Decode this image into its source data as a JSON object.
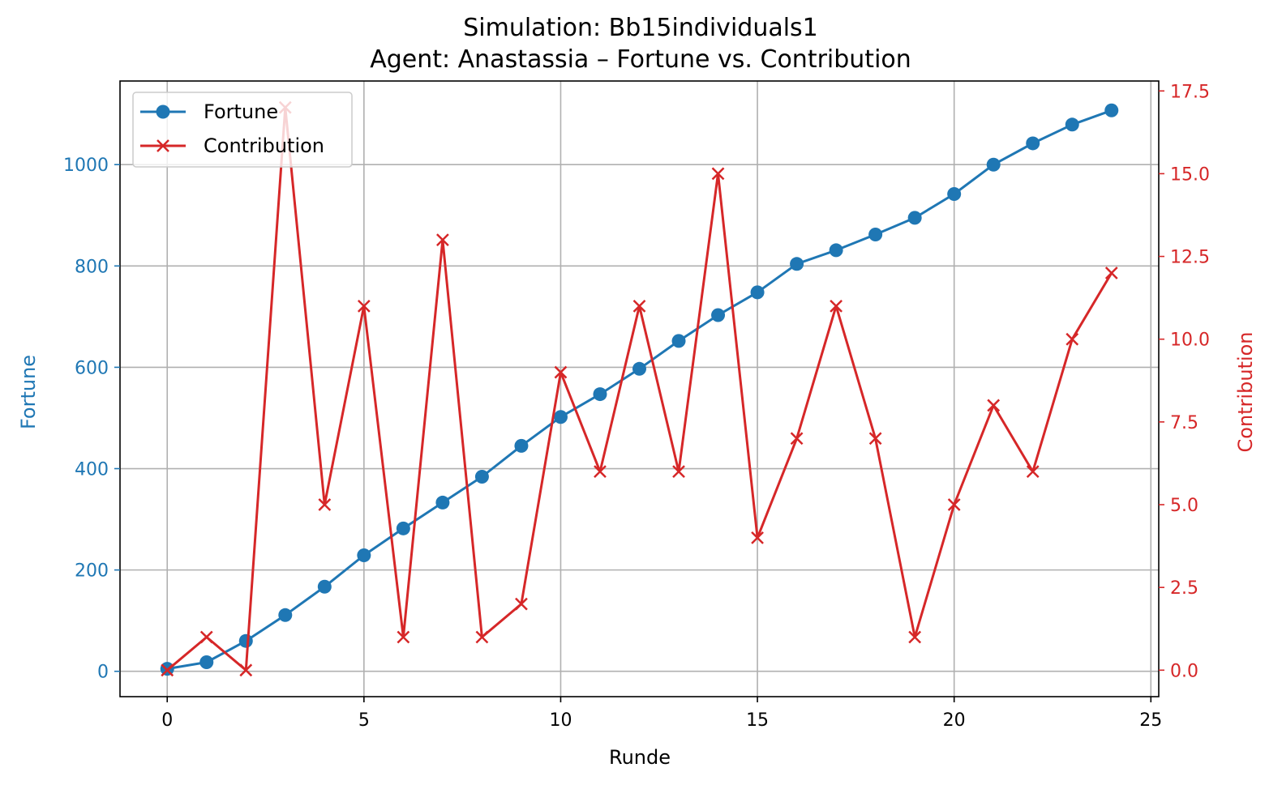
{
  "chart_data": {
    "type": "line",
    "title": "Simulation: Bb15individuals1",
    "subtitle": "Agent: Anastassia – Fortune vs. Contribution",
    "xlabel": "Runde",
    "ylabel_left": "Fortune",
    "ylabel_right": "Contribution",
    "x": [
      0,
      1,
      2,
      3,
      4,
      5,
      6,
      7,
      8,
      9,
      10,
      11,
      12,
      13,
      14,
      15,
      16,
      17,
      18,
      19,
      20,
      21,
      22,
      23,
      24
    ],
    "xlim": [
      -1.2,
      25.2
    ],
    "ylim_left": [
      -50,
      1165
    ],
    "ylim_right": [
      -0.8,
      17.8
    ],
    "xticks": [
      0,
      5,
      10,
      15,
      20,
      25
    ],
    "yticks_left": [
      0,
      200,
      400,
      600,
      800,
      1000
    ],
    "yticks_right": [
      "0.0",
      "2.5",
      "5.0",
      "7.5",
      "10.0",
      "12.5",
      "15.0",
      "17.5"
    ],
    "grid": true,
    "legend_position": "upper-left",
    "series": [
      {
        "name": "Fortune",
        "axis": "left",
        "color": "#1f77b4",
        "marker": "circle",
        "values": [
          5,
          18,
          60,
          111,
          167,
          229,
          282,
          333,
          384,
          445,
          502,
          547,
          597,
          652,
          703,
          748,
          804,
          831,
          862,
          895,
          942,
          1000,
          1042,
          1079,
          1107
        ]
      },
      {
        "name": "Contribution",
        "axis": "right",
        "color": "#d62728",
        "marker": "x",
        "values": [
          0,
          1,
          0,
          17,
          5,
          11,
          1,
          13,
          1,
          2,
          9,
          6,
          11,
          6,
          15,
          4,
          7,
          11,
          7,
          1,
          5,
          8,
          6,
          10,
          12
        ]
      }
    ]
  }
}
